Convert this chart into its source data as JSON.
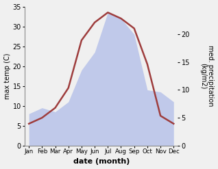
{
  "months": [
    "Jan",
    "Feb",
    "Mar",
    "Apr",
    "May",
    "Jun",
    "Jul",
    "Aug",
    "Sep",
    "Oct",
    "Nov",
    "Dec"
  ],
  "temp": [
    5.5,
    7.0,
    9.5,
    14.5,
    26.5,
    31.0,
    33.5,
    32.0,
    29.5,
    20.5,
    7.5,
    5.5
  ],
  "precip_kg": [
    8.0,
    9.5,
    8.5,
    11.0,
    19.0,
    23.5,
    33.5,
    32.0,
    28.0,
    14.0,
    13.5,
    11.0
  ],
  "temp_color": "#9e3d3d",
  "precip_fill_color": "#b0bce8",
  "precip_fill_alpha": 0.75,
  "ylabel_left": "max temp (C)",
  "ylabel_right": "med. precipitation\n(kg/m2)",
  "xlabel": "date (month)",
  "ylim": [
    0,
    35
  ],
  "right_axis_ticks_pos": [
    0,
    7,
    14,
    21,
    28
  ],
  "right_axis_labels": [
    "0",
    "5",
    "10",
    "15",
    "20"
  ],
  "left_yticks": [
    0,
    5,
    10,
    15,
    20,
    25,
    30,
    35
  ],
  "bg_color": "#f0f0f0"
}
